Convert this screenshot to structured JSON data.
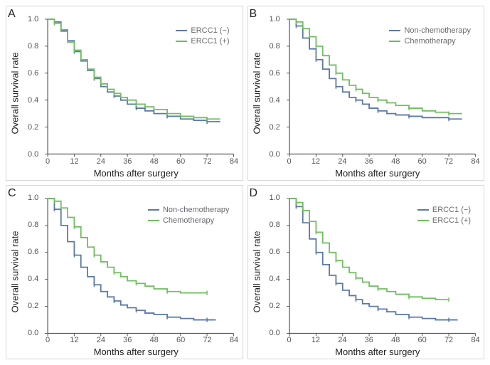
{
  "layout": {
    "rows": 2,
    "cols": 2,
    "panel_letters": [
      "A",
      "B",
      "C",
      "D"
    ]
  },
  "colors": {
    "series_a": "#5b79a8",
    "series_b": "#6fbf5f",
    "axis": "#555555",
    "background": "#ffffff",
    "panel_border": "#d8d8dc",
    "legend_text": "#6a6a70"
  },
  "axes": {
    "xlabel": "Months after surgery",
    "ylabel": "Overall survival rate",
    "xlim": [
      0,
      84
    ],
    "xtick_step": 12,
    "ylim": [
      0,
      1.0
    ],
    "ytick_step": 0.2,
    "label_fontsize": 13,
    "tick_fontsize": 11
  },
  "panels": [
    {
      "id": "A",
      "legend": [
        {
          "label": "ERCC1 (−)",
          "color": "#5b79a8"
        },
        {
          "label": "ERCC1 (+)",
          "color": "#6fbf5f"
        }
      ],
      "series": [
        {
          "name": "ERCC1 (−)",
          "color": "#5b79a8",
          "data": [
            [
              0,
              1.0
            ],
            [
              3,
              0.98
            ],
            [
              6,
              0.92
            ],
            [
              9,
              0.84
            ],
            [
              12,
              0.76
            ],
            [
              15,
              0.69
            ],
            [
              18,
              0.62
            ],
            [
              21,
              0.56
            ],
            [
              24,
              0.5
            ],
            [
              27,
              0.46
            ],
            [
              30,
              0.43
            ],
            [
              33,
              0.4
            ],
            [
              36,
              0.37
            ],
            [
              40,
              0.34
            ],
            [
              44,
              0.32
            ],
            [
              48,
              0.3
            ],
            [
              54,
              0.28
            ],
            [
              60,
              0.26
            ],
            [
              66,
              0.25
            ],
            [
              72,
              0.24
            ],
            [
              78,
              0.24
            ]
          ]
        },
        {
          "name": "ERCC1 (+)",
          "color": "#6fbf5f",
          "data": [
            [
              0,
              1.0
            ],
            [
              3,
              0.97
            ],
            [
              6,
              0.91
            ],
            [
              9,
              0.83
            ],
            [
              12,
              0.77
            ],
            [
              15,
              0.7
            ],
            [
              18,
              0.63
            ],
            [
              21,
              0.57
            ],
            [
              24,
              0.52
            ],
            [
              27,
              0.48
            ],
            [
              30,
              0.45
            ],
            [
              33,
              0.42
            ],
            [
              36,
              0.4
            ],
            [
              40,
              0.37
            ],
            [
              44,
              0.35
            ],
            [
              48,
              0.33
            ],
            [
              54,
              0.3
            ],
            [
              60,
              0.28
            ],
            [
              66,
              0.27
            ],
            [
              72,
              0.26
            ],
            [
              78,
              0.26
            ]
          ]
        }
      ]
    },
    {
      "id": "B",
      "legend": [
        {
          "label": "Non-chemotherapy",
          "color": "#5b79a8"
        },
        {
          "label": "Chemotherapy",
          "color": "#6fbf5f"
        }
      ],
      "series": [
        {
          "name": "Non-chemotherapy",
          "color": "#5b79a8",
          "data": [
            [
              0,
              1.0
            ],
            [
              3,
              0.95
            ],
            [
              6,
              0.86
            ],
            [
              9,
              0.78
            ],
            [
              12,
              0.7
            ],
            [
              15,
              0.63
            ],
            [
              18,
              0.56
            ],
            [
              21,
              0.5
            ],
            [
              24,
              0.46
            ],
            [
              27,
              0.42
            ],
            [
              30,
              0.4
            ],
            [
              33,
              0.37
            ],
            [
              36,
              0.34
            ],
            [
              40,
              0.32
            ],
            [
              44,
              0.3
            ],
            [
              48,
              0.29
            ],
            [
              54,
              0.28
            ],
            [
              60,
              0.27
            ],
            [
              66,
              0.27
            ],
            [
              72,
              0.26
            ],
            [
              78,
              0.26
            ]
          ]
        },
        {
          "name": "Chemotherapy",
          "color": "#6fbf5f",
          "data": [
            [
              0,
              1.0
            ],
            [
              3,
              0.98
            ],
            [
              6,
              0.93
            ],
            [
              9,
              0.87
            ],
            [
              12,
              0.8
            ],
            [
              15,
              0.73
            ],
            [
              18,
              0.66
            ],
            [
              21,
              0.6
            ],
            [
              24,
              0.55
            ],
            [
              27,
              0.51
            ],
            [
              30,
              0.48
            ],
            [
              33,
              0.45
            ],
            [
              36,
              0.42
            ],
            [
              40,
              0.4
            ],
            [
              44,
              0.38
            ],
            [
              48,
              0.36
            ],
            [
              54,
              0.34
            ],
            [
              60,
              0.32
            ],
            [
              66,
              0.31
            ],
            [
              72,
              0.3
            ],
            [
              78,
              0.3
            ]
          ]
        }
      ]
    },
    {
      "id": "C",
      "legend": [
        {
          "label": "Non-chemotherapy",
          "color": "#5b79a8"
        },
        {
          "label": "Chemotherapy",
          "color": "#6fbf5f"
        }
      ],
      "series": [
        {
          "name": "Non-chemotherapy",
          "color": "#5b79a8",
          "data": [
            [
              0,
              1.0
            ],
            [
              3,
              0.92
            ],
            [
              6,
              0.8
            ],
            [
              9,
              0.68
            ],
            [
              12,
              0.58
            ],
            [
              15,
              0.49
            ],
            [
              18,
              0.42
            ],
            [
              21,
              0.36
            ],
            [
              24,
              0.31
            ],
            [
              27,
              0.27
            ],
            [
              30,
              0.24
            ],
            [
              33,
              0.21
            ],
            [
              36,
              0.19
            ],
            [
              40,
              0.17
            ],
            [
              44,
              0.15
            ],
            [
              48,
              0.14
            ],
            [
              54,
              0.12
            ],
            [
              60,
              0.11
            ],
            [
              66,
              0.1
            ],
            [
              72,
              0.1
            ],
            [
              76,
              0.1
            ]
          ]
        },
        {
          "name": "Chemotherapy",
          "color": "#6fbf5f",
          "data": [
            [
              0,
              1.0
            ],
            [
              3,
              0.98
            ],
            [
              6,
              0.93
            ],
            [
              9,
              0.86
            ],
            [
              12,
              0.79
            ],
            [
              15,
              0.71
            ],
            [
              18,
              0.64
            ],
            [
              21,
              0.58
            ],
            [
              24,
              0.53
            ],
            [
              27,
              0.49
            ],
            [
              30,
              0.45
            ],
            [
              33,
              0.42
            ],
            [
              36,
              0.39
            ],
            [
              40,
              0.37
            ],
            [
              44,
              0.35
            ],
            [
              48,
              0.33
            ],
            [
              54,
              0.31
            ],
            [
              60,
              0.3
            ],
            [
              66,
              0.3
            ],
            [
              72,
              0.3
            ]
          ]
        }
      ]
    },
    {
      "id": "D",
      "legend": [
        {
          "label": "ERCC1 (−)",
          "color": "#5b79a8"
        },
        {
          "label": "ERCC1 (+)",
          "color": "#6fbf5f"
        }
      ],
      "series": [
        {
          "name": "ERCC1 (−)",
          "color": "#5b79a8",
          "data": [
            [
              0,
              1.0
            ],
            [
              3,
              0.94
            ],
            [
              6,
              0.82
            ],
            [
              9,
              0.7
            ],
            [
              12,
              0.6
            ],
            [
              15,
              0.51
            ],
            [
              18,
              0.43
            ],
            [
              21,
              0.37
            ],
            [
              24,
              0.32
            ],
            [
              27,
              0.28
            ],
            [
              30,
              0.25
            ],
            [
              33,
              0.22
            ],
            [
              36,
              0.2
            ],
            [
              40,
              0.18
            ],
            [
              44,
              0.16
            ],
            [
              48,
              0.14
            ],
            [
              54,
              0.12
            ],
            [
              60,
              0.11
            ],
            [
              66,
              0.1
            ],
            [
              72,
              0.1
            ],
            [
              76,
              0.1
            ]
          ]
        },
        {
          "name": "ERCC1 (+)",
          "color": "#6fbf5f",
          "data": [
            [
              0,
              1.0
            ],
            [
              3,
              0.97
            ],
            [
              6,
              0.91
            ],
            [
              9,
              0.83
            ],
            [
              12,
              0.75
            ],
            [
              15,
              0.67
            ],
            [
              18,
              0.6
            ],
            [
              21,
              0.54
            ],
            [
              24,
              0.49
            ],
            [
              27,
              0.45
            ],
            [
              30,
              0.41
            ],
            [
              33,
              0.38
            ],
            [
              36,
              0.35
            ],
            [
              40,
              0.33
            ],
            [
              44,
              0.31
            ],
            [
              48,
              0.29
            ],
            [
              54,
              0.27
            ],
            [
              60,
              0.26
            ],
            [
              66,
              0.25
            ],
            [
              72,
              0.25
            ]
          ]
        }
      ]
    }
  ]
}
